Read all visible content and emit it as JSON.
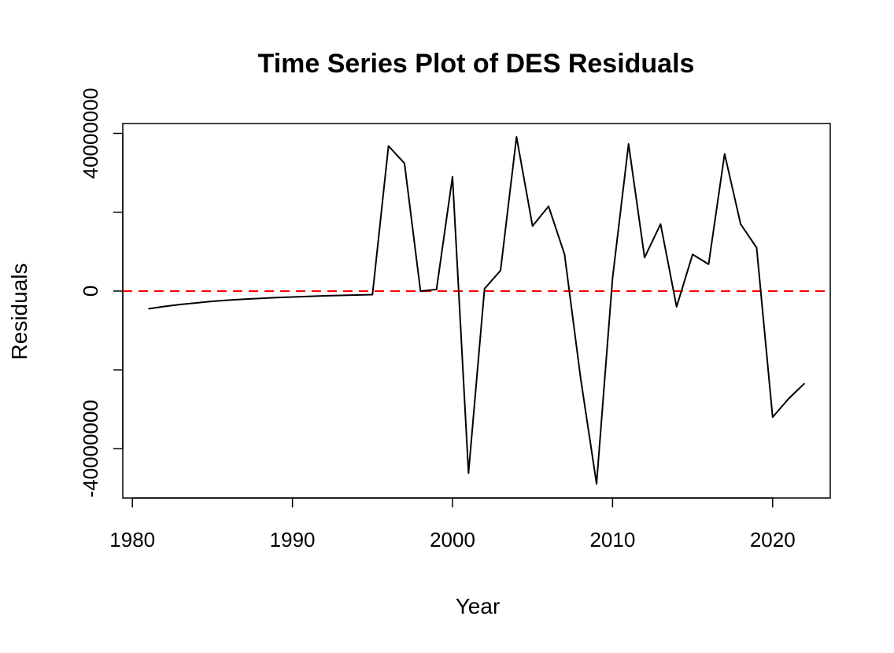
{
  "chart_data": {
    "type": "line",
    "title": "Time Series Plot of DES Residuals",
    "xlabel": "Year",
    "ylabel": "Residuals",
    "xlim": [
      1979.4,
      1023.6
    ],
    "ylim": [
      -52500000,
      42500000
    ],
    "x_ticks": [
      1980,
      1990,
      2000,
      2010,
      2020
    ],
    "y_ticks": [
      -40000000,
      0,
      40000000
    ],
    "y_tick_labels": [
      "-40000000",
      "0",
      "40000000"
    ],
    "grid": false,
    "reference_line": {
      "y": 0,
      "style": "dashed",
      "color": "#ff0000"
    },
    "series": [
      {
        "color": "#000000",
        "x": [
          1981,
          1982,
          1983,
          1984,
          1985,
          1986,
          1987,
          1988,
          1989,
          1990,
          1991,
          1992,
          1993,
          1994,
          1995,
          1996,
          1997,
          1998,
          1999,
          2000,
          2001,
          2002,
          2003,
          2004,
          2005,
          2006,
          2007,
          2008,
          2009,
          2010,
          2011,
          2012,
          2013,
          2014,
          2015,
          2016,
          2017,
          2018,
          2019,
          2020,
          2021,
          2022
        ],
        "y": [
          -4500000,
          -3900000,
          -3400000,
          -3000000,
          -2600000,
          -2300000,
          -2050000,
          -1850000,
          -1650000,
          -1500000,
          -1350000,
          -1220000,
          -1100000,
          -1000000,
          -900000,
          36800000,
          32400000,
          0,
          400000,
          29000000,
          -46200000,
          600000,
          5200000,
          39100000,
          16500000,
          21500000,
          9300000,
          -22000000,
          -48900000,
          3300000,
          37300000,
          8500000,
          17000000,
          -4000000,
          9300000,
          6800000,
          34800000,
          17000000,
          11000000,
          -32000000,
          -27300000,
          -23400000
        ]
      }
    ]
  }
}
